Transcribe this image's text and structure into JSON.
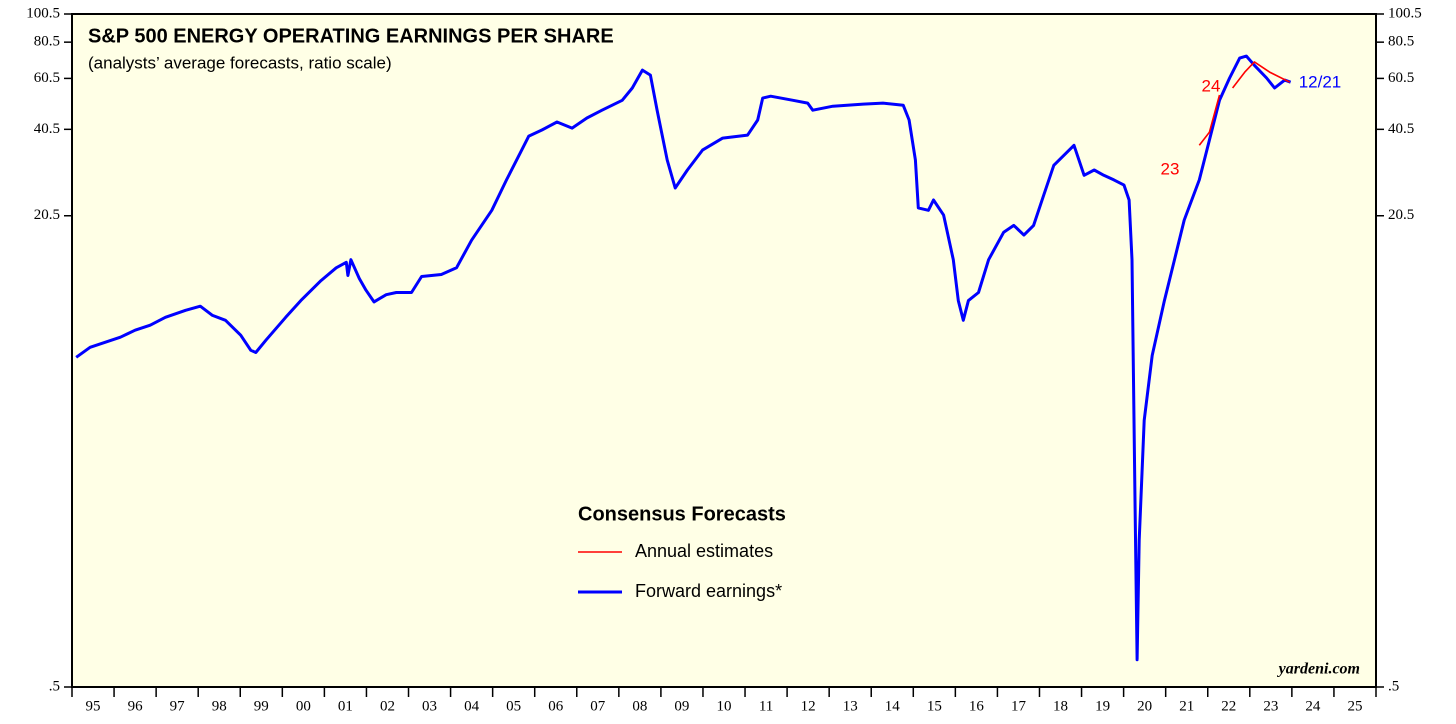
{
  "chart_data": {
    "type": "line",
    "title": "S&P 500 ENERGY OPERATING EARNINGS PER SHARE",
    "subtitle": "(analysts’ average forecasts, ratio scale)",
    "legend_title": "Consensus Forecasts",
    "source": "yardeni.com",
    "log_scale": true,
    "background": "#ffffe6",
    "xlim": [
      1995,
      2026
    ],
    "xticks": [
      1995,
      1996,
      1997,
      1998,
      1999,
      2000,
      2001,
      2002,
      2003,
      2004,
      2005,
      2006,
      2007,
      2008,
      2009,
      2010,
      2011,
      2012,
      2013,
      2014,
      2015,
      2016,
      2017,
      2018,
      2019,
      2020,
      2021,
      2022,
      2023,
      2024,
      2025,
      2026
    ],
    "categories": [
      "95",
      "96",
      "97",
      "98",
      "99",
      "00",
      "01",
      "02",
      "03",
      "04",
      "05",
      "06",
      "07",
      "08",
      "09",
      "10",
      "11",
      "12",
      "13",
      "14",
      "15",
      "16",
      "17",
      "18",
      "19",
      "20",
      "21",
      "22",
      "23",
      "24",
      "25"
    ],
    "ylim": [
      0.5,
      100.5
    ],
    "yticks": [
      {
        "value": 0.5,
        "label": ".5"
      },
      20.5,
      40.5,
      60.5,
      80.5,
      100.5
    ],
    "annotations": [
      {
        "text": "23",
        "color": "#ff0000"
      },
      {
        "text": "24",
        "color": "#ff0000"
      },
      {
        "text": "12/21",
        "color": "#0000ff"
      }
    ],
    "series": [
      {
        "name": "Annual estimates",
        "color": "#ff0000",
        "x": [
          2021.8,
          2022.04,
          2022.28,
          null,
          2022.59,
          2022.88,
          2023.11,
          2023.47,
          2023.95
        ],
        "values": [
          35.7,
          39.6,
          53.1,
          null,
          56.1,
          63.6,
          68.9,
          63.6,
          58.7
        ]
      },
      {
        "name": "Forward earnings*",
        "color": "#0000ff",
        "x": [
          1995.1,
          1995.43,
          1996.15,
          1996.5,
          1996.86,
          1997.22,
          1997.7,
          1998.05,
          1998.34,
          1998.65,
          1999.01,
          1999.25,
          1999.37,
          1999.61,
          2000.08,
          2000.44,
          2000.92,
          2001.28,
          2001.52,
          2001.56,
          2001.63,
          2001.83,
          2001.99,
          2002.18,
          2002.47,
          2002.71,
          2003.07,
          2003.31,
          2003.78,
          2004.14,
          2004.5,
          2004.98,
          2005.33,
          2005.69,
          2005.86,
          2006.17,
          2006.53,
          2006.89,
          2007.24,
          2007.6,
          2008.08,
          2008.32,
          2008.56,
          2008.75,
          2008.91,
          2009.15,
          2009.34,
          2009.63,
          2009.99,
          2010.47,
          2011.06,
          2011.3,
          2011.42,
          2011.61,
          2012.14,
          2012.49,
          2012.61,
          2013.09,
          2013.81,
          2014.28,
          2014.76,
          2014.9,
          2015.05,
          2015.12,
          2015.36,
          2015.48,
          2015.72,
          2015.95,
          2016.07,
          2016.19,
          2016.31,
          2016.55,
          2016.79,
          2017.15,
          2017.39,
          2017.63,
          2017.86,
          2018.1,
          2018.34,
          2018.58,
          2018.82,
          2019.06,
          2019.3,
          2019.53,
          2019.77,
          2020.01,
          2020.13,
          2020.2,
          2020.27,
          2020.32,
          2020.37,
          2020.49,
          2020.68,
          2020.97,
          2021.21,
          2021.44,
          2021.8,
          2022.04,
          2022.28,
          2022.52,
          2022.76,
          2022.92,
          2023.11,
          2023.4,
          2023.59,
          2023.83,
          2023.97
        ],
        "values": [
          6.72,
          7.27,
          7.87,
          8.32,
          8.65,
          9.21,
          9.73,
          10.05,
          9.35,
          8.99,
          8.0,
          7.1,
          6.98,
          7.69,
          9.21,
          10.5,
          12.3,
          13.6,
          14.2,
          12.8,
          14.5,
          12.5,
          11.4,
          10.4,
          11.0,
          11.2,
          11.2,
          12.7,
          12.9,
          13.6,
          16.9,
          21.4,
          27.2,
          34.4,
          38.4,
          40.3,
          42.9,
          40.9,
          44.3,
          47.1,
          50.9,
          56.1,
          64.6,
          62.1,
          47.1,
          31.8,
          25.5,
          29.4,
          34.4,
          37.8,
          38.7,
          43.6,
          51.8,
          52.6,
          50.9,
          49.8,
          47.1,
          48.6,
          49.4,
          49.8,
          49.0,
          43.6,
          31.8,
          21.8,
          21.4,
          23.2,
          20.6,
          14.5,
          10.5,
          8.99,
          10.5,
          11.2,
          14.5,
          18.0,
          19.0,
          17.6,
          19.0,
          24.1,
          30.5,
          33.0,
          35.7,
          28.2,
          29.4,
          28.2,
          27.2,
          26.1,
          23.2,
          14.5,
          2.18,
          0.62,
          1.59,
          4.09,
          6.82,
          10.5,
          14.5,
          19.8,
          27.2,
          37.2,
          50.9,
          60.7,
          71.0,
          72.1,
          67.1,
          60.7,
          56.1,
          59.7,
          58.7
        ]
      }
    ]
  }
}
